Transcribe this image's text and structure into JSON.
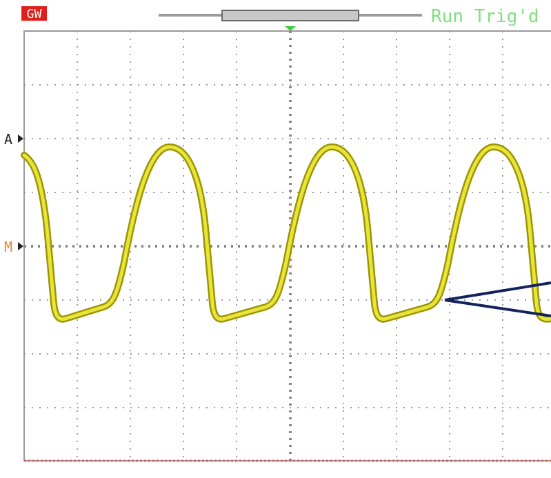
{
  "status": {
    "brand": "GW",
    "state": "Run Trig'd"
  },
  "markers": {
    "channel": "A",
    "math": "M"
  }
}
